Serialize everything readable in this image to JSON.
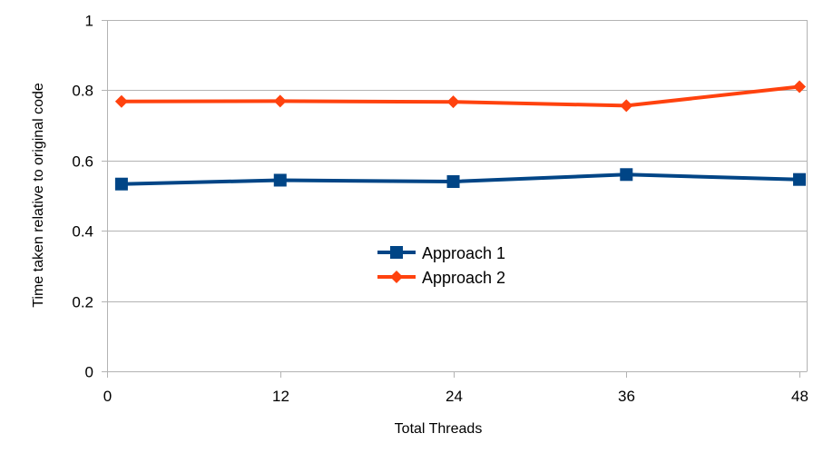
{
  "chart_data": {
    "type": "line",
    "title": "",
    "xlabel": "Total Threads",
    "ylabel": "Time taken relative to original code",
    "x": [
      1,
      12,
      24,
      36,
      48
    ],
    "xlim": [
      0,
      48.5
    ],
    "ylim": [
      0,
      1
    ],
    "xticks": [
      0,
      12,
      24,
      36,
      48
    ],
    "yticks": [
      0,
      0.2,
      0.4,
      0.6,
      0.8,
      1
    ],
    "xtick_labels": [
      "0",
      "12",
      "24",
      "36",
      "48"
    ],
    "ytick_labels": [
      "0",
      "0.2",
      "0.4",
      "0.6",
      "0.8",
      "1"
    ],
    "grid": "horizontal",
    "legend_position": "center",
    "series": [
      {
        "name": "Approach 1",
        "values": [
          0.533,
          0.544,
          0.54,
          0.56,
          0.546
        ],
        "color": "#004586",
        "marker": "square"
      },
      {
        "name": "Approach 2",
        "values": [
          0.768,
          0.769,
          0.767,
          0.756,
          0.81
        ],
        "color": "#ff420e",
        "marker": "diamond"
      }
    ]
  }
}
